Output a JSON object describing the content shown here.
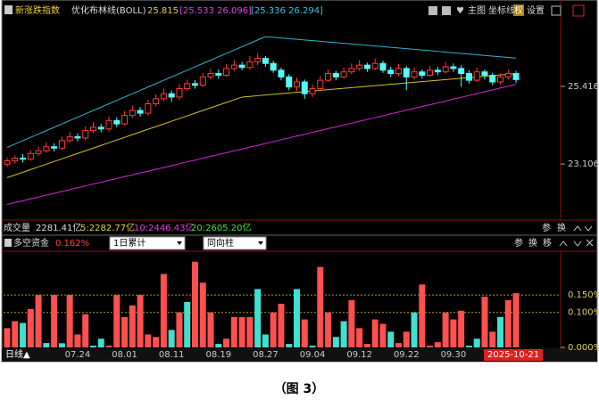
{
  "header": {
    "title": "新涨跌指数",
    "indicator": "优化布林线(BOLL)",
    "indicator_values": [
      "25.815",
      "[25.533 26.096]",
      "[25.336 26.294]"
    ],
    "tools": [
      "主图",
      "坐标线",
      "权",
      "设置"
    ]
  },
  "volume_row": {
    "title": "成交量",
    "values": [
      "2281.41亿",
      "5:2282.77亿",
      "10:2446.43亿",
      "20:2605.20亿"
    ],
    "buttons": [
      "参",
      "换"
    ]
  },
  "lower_header": {
    "buttons": [
      "参",
      "换",
      "移"
    ],
    "dropdowns": [
      "1日累计",
      "同向柱"
    ]
  },
  "period_label": "日线▲",
  "caption": "（图 3）",
  "chart_data": [
    {
      "type": "candlestick",
      "up_color": "#ff3c3c",
      "down_color": "#54fcfc",
      "ylim": [
        21.49,
        27.46
      ],
      "yticks": [
        25.416,
        23.106
      ],
      "grid": false,
      "open": [
        23.1,
        23.2,
        23.28,
        23.25,
        23.42,
        23.5,
        23.62,
        23.58,
        23.8,
        23.92,
        23.88,
        24.1,
        24.2,
        24.15,
        24.4,
        24.3,
        24.55,
        24.7,
        24.62,
        24.9,
        25.05,
        25.2,
        25.1,
        25.35,
        25.5,
        25.45,
        25.7,
        25.8,
        25.75,
        25.95,
        26.05,
        25.98,
        26.15,
        26.25,
        26.1,
        25.9,
        25.7,
        25.4,
        25.55,
        25.2,
        25.35,
        25.6,
        25.8,
        25.7,
        25.85,
        25.95,
        26.05,
        25.95,
        26.1,
        25.9,
        25.8,
        25.95,
        25.7,
        25.85,
        25.75,
        25.9,
        25.85,
        26.0,
        25.95,
        25.8,
        25.6,
        25.85,
        25.75,
        25.55,
        25.7,
        25.8
      ],
      "high": [
        23.3,
        23.36,
        23.4,
        23.52,
        23.62,
        23.75,
        23.72,
        23.92,
        24.05,
        24.02,
        24.22,
        24.35,
        24.3,
        24.52,
        24.5,
        24.68,
        24.85,
        24.8,
        25.02,
        25.18,
        25.35,
        25.3,
        25.48,
        25.62,
        25.6,
        25.82,
        25.95,
        25.92,
        26.08,
        26.2,
        26.15,
        26.32,
        26.4,
        26.32,
        26.18,
        25.98,
        25.78,
        25.68,
        25.62,
        25.48,
        25.72,
        25.92,
        25.88,
        25.98,
        26.1,
        26.2,
        26.12,
        26.25,
        26.18,
        26.0,
        26.08,
        26.02,
        25.98,
        25.92,
        26.02,
        26.0,
        26.15,
        26.1,
        26.05,
        25.9,
        25.98,
        25.92,
        25.82,
        25.8,
        25.92,
        25.88
      ],
      "low": [
        23.02,
        23.12,
        23.15,
        23.2,
        23.35,
        23.44,
        23.48,
        23.52,
        23.74,
        23.78,
        23.82,
        24.02,
        24.05,
        24.08,
        24.2,
        24.25,
        24.48,
        24.52,
        24.55,
        24.82,
        24.98,
        24.95,
        25.02,
        25.28,
        25.35,
        25.4,
        25.62,
        25.65,
        25.7,
        25.88,
        25.9,
        25.92,
        26.05,
        26.0,
        25.82,
        25.6,
        25.3,
        25.28,
        25.05,
        25.1,
        25.3,
        25.55,
        25.6,
        25.65,
        25.78,
        25.88,
        25.85,
        25.9,
        25.82,
        25.7,
        25.72,
        25.3,
        25.62,
        25.65,
        25.7,
        25.75,
        25.8,
        25.85,
        25.4,
        25.5,
        25.55,
        25.62,
        25.45,
        25.48,
        25.62,
        25.52
      ],
      "close": [
        23.2,
        23.28,
        23.25,
        23.42,
        23.5,
        23.62,
        23.58,
        23.8,
        23.92,
        23.88,
        24.1,
        24.2,
        24.15,
        24.4,
        24.3,
        24.55,
        24.7,
        24.62,
        24.9,
        25.05,
        25.2,
        25.1,
        25.35,
        25.5,
        25.45,
        25.7,
        25.8,
        25.75,
        25.95,
        26.05,
        25.98,
        26.15,
        26.25,
        26.1,
        25.9,
        25.7,
        25.4,
        25.55,
        25.2,
        25.35,
        25.6,
        25.8,
        25.7,
        25.85,
        25.95,
        26.05,
        25.95,
        26.1,
        25.9,
        25.8,
        25.95,
        25.7,
        25.85,
        25.75,
        25.9,
        25.85,
        26.0,
        25.95,
        25.8,
        25.6,
        25.85,
        25.75,
        25.55,
        25.7,
        25.8,
        25.62
      ],
      "lines": [
        {
          "color": "#2fb6d2",
          "values": [
            23.6,
            23.7,
            23.8,
            23.9,
            24.0,
            24.1,
            24.2,
            24.3,
            24.4,
            24.5,
            24.6,
            24.7,
            24.8,
            24.9,
            25.0,
            25.1,
            25.2,
            25.3,
            25.4,
            25.5,
            25.6,
            25.7,
            25.8,
            25.9,
            26.0,
            26.1,
            26.2,
            26.3,
            26.4,
            26.5,
            26.6,
            26.7,
            26.8,
            26.9,
            26.88,
            26.86,
            26.84,
            26.82,
            26.8,
            26.78,
            26.76,
            26.74,
            26.72,
            26.7,
            26.68,
            26.66,
            26.64,
            26.62,
            26.6,
            26.58,
            26.56,
            26.54,
            26.52,
            26.5,
            26.48,
            26.46,
            26.44,
            26.42,
            26.4,
            26.38,
            26.36,
            26.34,
            26.32,
            26.3,
            26.28,
            26.26
          ]
        },
        {
          "color": "#d8c020",
          "values": [
            22.7,
            22.78,
            22.86,
            22.94,
            23.02,
            23.1,
            23.18,
            23.26,
            23.34,
            23.42,
            23.5,
            23.58,
            23.66,
            23.74,
            23.82,
            23.9,
            23.98,
            24.06,
            24.14,
            24.22,
            24.3,
            24.38,
            24.46,
            24.54,
            24.62,
            24.7,
            24.78,
            24.86,
            24.94,
            25.02,
            25.1,
            25.12,
            25.14,
            25.16,
            25.18,
            25.2,
            25.22,
            25.24,
            25.26,
            25.28,
            25.3,
            25.32,
            25.34,
            25.36,
            25.38,
            25.4,
            25.42,
            25.44,
            25.46,
            25.48,
            25.5,
            25.52,
            25.54,
            25.56,
            25.58,
            25.6,
            25.62,
            25.64,
            25.66,
            25.68,
            25.7,
            25.72,
            25.74,
            25.76,
            25.78,
            25.8
          ]
        },
        {
          "color": "#e020e0",
          "values": [
            21.9,
            21.96,
            22.01,
            22.07,
            22.12,
            22.18,
            22.23,
            22.29,
            22.34,
            22.4,
            22.45,
            22.51,
            22.56,
            22.62,
            22.67,
            22.73,
            22.78,
            22.84,
            22.89,
            22.95,
            23.0,
            23.06,
            23.11,
            23.17,
            23.22,
            23.28,
            23.33,
            23.39,
            23.44,
            23.5,
            23.55,
            23.61,
            23.66,
            23.72,
            23.77,
            23.83,
            23.88,
            23.94,
            23.99,
            24.05,
            24.1,
            24.16,
            24.21,
            24.27,
            24.32,
            24.38,
            24.43,
            24.49,
            24.54,
            24.6,
            24.65,
            24.71,
            24.76,
            24.82,
            24.87,
            24.93,
            24.98,
            25.04,
            25.09,
            25.15,
            25.2,
            25.26,
            25.31,
            25.37,
            25.42,
            25.48
          ]
        }
      ]
    },
    {
      "type": "bar",
      "title": "多空资金",
      "subtitle": "0.162%",
      "ylim": [
        0,
        0.27
      ],
      "grid": true,
      "yticks": [
        {
          "value": 0.15,
          "label": "0.150%"
        },
        {
          "value": 0.1,
          "label": "0.100%"
        },
        {
          "value": 0,
          "label": "0.000%"
        }
      ],
      "categories": [
        null,
        null,
        null,
        null,
        null,
        null,
        null,
        null,
        null,
        "07.24",
        null,
        null,
        null,
        null,
        null,
        "08.01",
        null,
        null,
        null,
        null,
        null,
        "08.11",
        null,
        null,
        null,
        null,
        null,
        "08.19",
        null,
        null,
        null,
        null,
        null,
        "08.27",
        null,
        null,
        null,
        null,
        null,
        "09.04",
        null,
        null,
        null,
        null,
        null,
        "09.12",
        null,
        null,
        null,
        null,
        null,
        "09.22",
        null,
        null,
        null,
        null,
        null,
        "09.30",
        null,
        null,
        null,
        null,
        null,
        null,
        null,
        "2025-10-21"
      ],
      "values": [
        0.055,
        0.075,
        0.07,
        0.11,
        0.15,
        0.0125,
        0.15,
        0.012,
        0.15,
        0.037,
        0.095,
        0.005,
        0.025,
        0.005,
        0.15,
        0.087,
        0.12,
        0.15,
        0.037,
        0.03,
        0.21,
        0.05,
        0.1,
        0.13,
        0.245,
        0.185,
        0.1,
        0.01,
        0.025,
        0.087,
        0.087,
        0.087,
        0.167,
        0.037,
        0.1,
        0.125,
        0.01,
        0.167,
        0.08,
        0.005,
        0.23,
        0.1,
        0.03,
        0.075,
        0.135,
        0.055,
        0.01,
        0.08,
        0.0675,
        0.045,
        0.0125,
        0.045,
        0.1,
        0.18,
        0.005,
        0.015,
        0.1,
        0.08,
        0.105,
        0.005,
        0.025,
        0.145,
        0.045,
        0.087,
        0.135,
        0.155
      ],
      "colors": [
        "#ff5050",
        "#ff5050",
        "#40e0d0",
        "#ff5050",
        "#ff5050",
        "#40e0d0",
        "#ff5050",
        "#40e0d0",
        "#ff5050",
        "#ff5050",
        "#ff5050",
        "#40e0d0",
        "#40e0d0",
        "#ff5050",
        "#ff5050",
        "#ff5050",
        "#ff5050",
        "#ff5050",
        "#ff5050",
        "#ff5050",
        "#ff5050",
        "#40e0d0",
        "#ff5050",
        "#40e0d0",
        "#ff5050",
        "#ff5050",
        "#ff5050",
        "#40e0d0",
        "#ff5050",
        "#ff5050",
        "#ff5050",
        "#ff5050",
        "#40e0d0",
        "#40e0d0",
        "#ff5050",
        "#ff5050",
        "#40e0d0",
        "#40e0d0",
        "#ff5050",
        "#40e0d0",
        "#ff5050",
        "#ff5050",
        "#40e0d0",
        "#40e0d0",
        "#ff5050",
        "#ff5050",
        "#ff5050",
        "#ff5050",
        "#ff5050",
        "#40e0d0",
        "#ff5050",
        "#ff5050",
        "#40e0d0",
        "#ff5050",
        "#ff5050",
        "#ff5050",
        "#ff5050",
        "#ff5050",
        "#ff5050",
        "#40e0d0",
        "#40e0d0",
        "#ff5050",
        "#ff5050",
        "#40e0d0",
        "#ff5050",
        "#ff5050"
      ]
    }
  ]
}
